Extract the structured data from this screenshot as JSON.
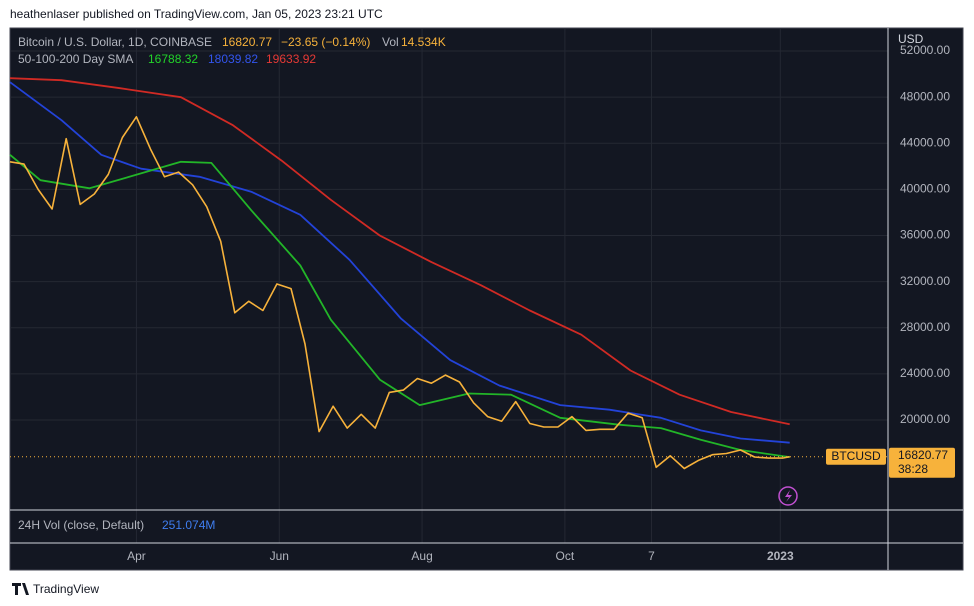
{
  "header": "heathenlaser published on TradingView.com, Jan 05, 2023 23:21 UTC",
  "footer": "TradingView",
  "chart_data": {
    "type": "line",
    "symbol": "Bitcoin / U.S. Dollar, 1D, COINBASE",
    "change": "−23.65 (−0.14%)",
    "volume_label": "Vol",
    "volume": "14.534K",
    "indicator": "50-100-200 Day SMA",
    "price_axis_label": "USD",
    "countdown": "38:28",
    "volume_pane": {
      "title": "24H Vol (close, Default)",
      "value": "251.074M"
    },
    "xlim": [
      -54,
      321
    ],
    "xticks": [
      {
        "value": 0,
        "label": "Apr"
      },
      {
        "value": 61,
        "label": "Jun"
      },
      {
        "value": 122,
        "label": "Aug"
      },
      {
        "value": 183,
        "label": "Oct"
      },
      {
        "value": 220,
        "label": "7"
      },
      {
        "value": 275,
        "label": "2023"
      }
    ],
    "ylim": [
      12200,
      54000
    ],
    "yticks": [
      {
        "value": 20000,
        "label": "20000.00"
      },
      {
        "value": 24000,
        "label": "24000.00"
      },
      {
        "value": 28000,
        "label": "28000.00"
      },
      {
        "value": 32000,
        "label": "32000.00"
      },
      {
        "value": 36000,
        "label": "36000.00"
      },
      {
        "value": 40000,
        "label": "40000.00"
      },
      {
        "value": 44000,
        "label": "44000.00"
      },
      {
        "value": 48000,
        "label": "48000.00"
      },
      {
        "value": 52000,
        "label": "52000.00"
      }
    ],
    "grid": true,
    "series": [
      {
        "name": "BTCUSD",
        "color": "#f7b23b",
        "x": [
          -54,
          -48,
          -42,
          -36,
          -30,
          -24,
          -18,
          -12,
          -6,
          0,
          6,
          12,
          18,
          24,
          30,
          36,
          42,
          48,
          54,
          60,
          66,
          72,
          78,
          84,
          90,
          96,
          102,
          108,
          114,
          120,
          126,
          132,
          138,
          144,
          150,
          156,
          162,
          168,
          174,
          180,
          186,
          192,
          198,
          204,
          210,
          216,
          222,
          228,
          234,
          240,
          246,
          252,
          258,
          264,
          270,
          276,
          279
        ],
        "values": [
          42400,
          42200,
          40000,
          38300,
          44400,
          38700,
          39600,
          41300,
          44500,
          46300,
          43500,
          41100,
          41500,
          40400,
          38500,
          35500,
          29300,
          30300,
          29500,
          31800,
          31400,
          26600,
          19000,
          21200,
          19300,
          20500,
          19300,
          22400,
          22600,
          23600,
          23200,
          23900,
          23300,
          21500,
          20300,
          19900,
          21600,
          19700,
          19400,
          19400,
          20300,
          19100,
          19200,
          19200,
          20600,
          20200,
          15900,
          16900,
          15800,
          16500,
          17000,
          17100,
          17400,
          16800,
          16700,
          16700,
          16820.77
        ]
      },
      {
        "color": "#22b528",
        "x": [
          -54,
          -41,
          -20,
          19,
          32,
          49,
          70,
          83,
          104,
          121,
          142,
          160,
          181,
          206,
          224,
          241,
          258,
          279
        ],
        "values": [
          43000,
          40800,
          40100,
          42400,
          42300,
          38200,
          33400,
          28700,
          23500,
          21300,
          22300,
          22200,
          20200,
          19600,
          19300,
          18300,
          17400,
          16788.32
        ]
      },
      {
        "color": "#2343d8",
        "x": [
          -54,
          -32,
          -15,
          2,
          27,
          49,
          70,
          91,
          113,
          134,
          155,
          181,
          202,
          224,
          241,
          258,
          279
        ],
        "values": [
          49300,
          46000,
          43000,
          41800,
          41100,
          39800,
          37800,
          33900,
          28800,
          25200,
          23000,
          21300,
          20900,
          20200,
          19100,
          18400,
          18039.82
        ]
      },
      {
        "color": "#d02a24",
        "x": [
          -54,
          -32,
          -7,
          19,
          41,
          62,
          83,
          104,
          126,
          147,
          168,
          190,
          211,
          232,
          254,
          279
        ],
        "values": [
          49650,
          49470,
          48780,
          48000,
          45600,
          42500,
          39100,
          36000,
          33700,
          31700,
          29500,
          27400,
          24300,
          22200,
          20700,
          19633.92
        ]
      }
    ]
  }
}
